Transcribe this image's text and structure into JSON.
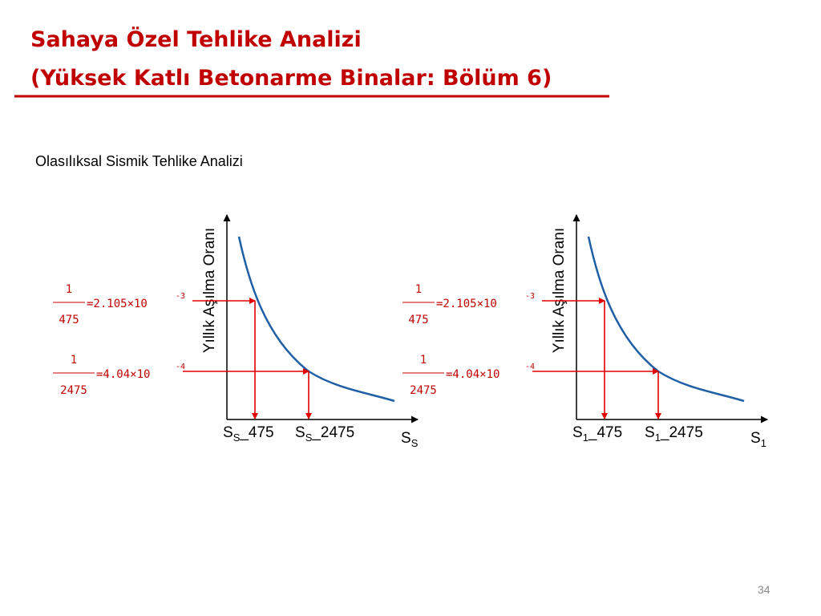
{
  "header": {
    "title_lines": [
      "Sahaya Özel Tehlike Analizi",
      "(Yüksek Katlı Betonarme Binalar: Bölüm 6)"
    ]
  },
  "subtitle": "Olasılıksal Sismik Tehlike Analizi",
  "diagrams": [
    {
      "y_axis_label": "Yıllık Aşılma Oranı",
      "x_axis_label": {
        "base": "S",
        "sub": "S"
      },
      "levels": [
        {
          "numerator": "1",
          "denominator": "475",
          "value_text": "=2.105×10",
          "exponent": "-3",
          "x_label": {
            "base": "S",
            "sub": "S",
            "suffix": "_475"
          }
        },
        {
          "numerator": "1",
          "denominator": "2475",
          "value_text": "=4.04×10",
          "exponent": "-4",
          "x_label": {
            "base": "S",
            "sub": "S",
            "suffix": "_2475"
          }
        }
      ]
    },
    {
      "y_axis_label": "Yıllık Aşılma Oranı",
      "x_axis_label": {
        "base": "S",
        "sub": "1"
      },
      "levels": [
        {
          "numerator": "1",
          "denominator": "475",
          "value_text": "=2.105×10",
          "exponent": "-3",
          "x_label": {
            "base": "S",
            "sub": "1",
            "suffix": "_475"
          }
        },
        {
          "numerator": "1",
          "denominator": "2475",
          "value_text": "=4.04×10",
          "exponent": "-4",
          "x_label": {
            "base": "S",
            "sub": "1",
            "suffix": "_2475"
          }
        }
      ]
    }
  ],
  "page_number": "34"
}
